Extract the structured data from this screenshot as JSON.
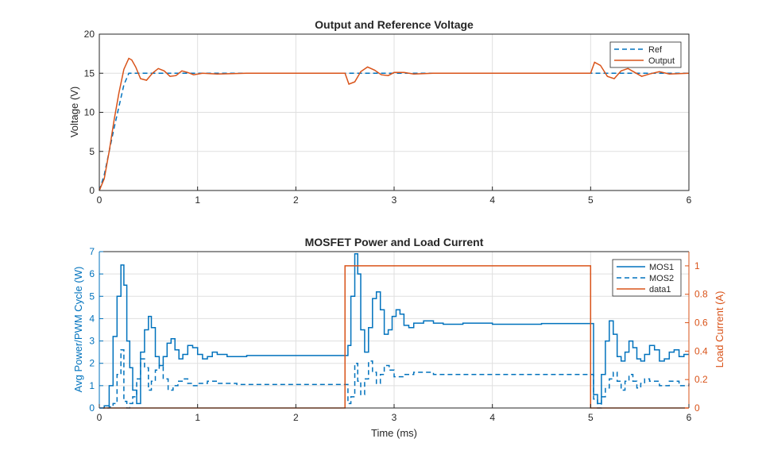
{
  "colors": {
    "blue": "#0072BD",
    "orange": "#D95319",
    "axis": "#262626",
    "grid": "#dfdfdf"
  },
  "chart_data": [
    {
      "type": "line",
      "title": "Output and Reference Voltage",
      "xlabel": "",
      "ylabel": "Voltage (V)",
      "xlim": [
        0,
        6
      ],
      "ylim": [
        0,
        20
      ],
      "xticks": [
        0,
        1,
        2,
        3,
        4,
        5,
        6
      ],
      "yticks": [
        0,
        5,
        10,
        15,
        20
      ],
      "grid": true,
      "legend_position": "top-right",
      "series": [
        {
          "name": "Ref",
          "style": "dashed",
          "color": "#0072BD",
          "x": [
            0,
            0.05,
            0.15,
            0.25,
            0.3,
            6
          ],
          "y": [
            0,
            2,
            8,
            13.5,
            15,
            15
          ]
        },
        {
          "name": "Output",
          "style": "solid",
          "color": "#D95319",
          "x": [
            0,
            0.05,
            0.1,
            0.15,
            0.2,
            0.25,
            0.3,
            0.33,
            0.37,
            0.42,
            0.48,
            0.54,
            0.6,
            0.66,
            0.72,
            0.78,
            0.84,
            0.9,
            0.96,
            1.05,
            1.2,
            1.5,
            2.0,
            2.5,
            2.54,
            2.6,
            2.66,
            2.73,
            2.8,
            2.87,
            2.94,
            3.0,
            3.1,
            3.2,
            3.4,
            4.0,
            4.5,
            5.0,
            5.04,
            5.1,
            5.17,
            5.24,
            5.31,
            5.38,
            5.45,
            5.52,
            5.6,
            5.7,
            5.8,
            6.0
          ],
          "y": [
            0,
            1.5,
            5,
            9,
            12.5,
            15.5,
            16.9,
            16.7,
            15.8,
            14.3,
            14.1,
            15.0,
            15.6,
            15.3,
            14.6,
            14.7,
            15.3,
            15.1,
            14.8,
            15.0,
            14.9,
            15.0,
            15.0,
            15.0,
            13.6,
            13.9,
            15.2,
            15.8,
            15.4,
            14.8,
            14.7,
            15.1,
            15.1,
            14.9,
            15.0,
            15.0,
            15.0,
            15.0,
            16.4,
            16.0,
            14.6,
            14.3,
            15.3,
            15.6,
            15.1,
            14.6,
            14.9,
            15.2,
            14.9,
            15.0
          ]
        }
      ]
    },
    {
      "type": "line",
      "title": "MOSFET Power and Load Current",
      "xlabel": "Time (ms)",
      "ylabel_left": "Avg Power/PWM Cycle (W)",
      "ylabel_right": "Load Current (A)",
      "xlim": [
        0,
        6
      ],
      "ylim_left": [
        0,
        7
      ],
      "ylim_right": [
        0,
        1.1
      ],
      "xticks": [
        0,
        1,
        2,
        3,
        4,
        5,
        6
      ],
      "yticks_left": [
        0,
        1,
        2,
        3,
        4,
        5,
        6,
        7
      ],
      "yticks_right": [
        0,
        0.2,
        0.4,
        0.6,
        0.8,
        1
      ],
      "grid": true,
      "legend_position": "top-right",
      "series": [
        {
          "name": "MOS1",
          "style": "solid-step",
          "axis": "left",
          "color": "#0072BD",
          "x": [
            0,
            0.05,
            0.1,
            0.14,
            0.18,
            0.22,
            0.25,
            0.28,
            0.31,
            0.34,
            0.38,
            0.42,
            0.46,
            0.5,
            0.53,
            0.57,
            0.61,
            0.65,
            0.69,
            0.73,
            0.77,
            0.81,
            0.85,
            0.9,
            0.95,
            1.0,
            1.05,
            1.1,
            1.15,
            1.2,
            1.3,
            1.5,
            2.0,
            2.5,
            2.53,
            2.56,
            2.6,
            2.63,
            2.66,
            2.7,
            2.74,
            2.78,
            2.82,
            2.86,
            2.9,
            2.94,
            2.98,
            3.02,
            3.06,
            3.1,
            3.15,
            3.2,
            3.3,
            3.4,
            3.5,
            3.7,
            4.0,
            4.5,
            5.0,
            5.03,
            5.07,
            5.11,
            5.15,
            5.19,
            5.23,
            5.27,
            5.31,
            5.35,
            5.39,
            5.43,
            5.47,
            5.51,
            5.55,
            5.6,
            5.65,
            5.7,
            5.75,
            5.8,
            5.85,
            5.9,
            5.95,
            6.0
          ],
          "y": [
            0,
            0.1,
            1.0,
            3.2,
            5.0,
            6.4,
            5.5,
            3.0,
            1.8,
            0.8,
            0.2,
            2.5,
            3.5,
            4.1,
            3.6,
            2.3,
            1.9,
            2.3,
            2.9,
            3.1,
            2.6,
            2.2,
            2.4,
            2.8,
            2.7,
            2.4,
            2.2,
            2.3,
            2.5,
            2.4,
            2.3,
            2.35,
            2.35,
            2.35,
            2.8,
            5.0,
            6.9,
            6.0,
            3.5,
            2.5,
            3.6,
            4.9,
            5.2,
            4.4,
            3.3,
            3.5,
            4.1,
            4.4,
            4.2,
            3.7,
            3.6,
            3.8,
            3.9,
            3.8,
            3.75,
            3.8,
            3.75,
            3.78,
            3.78,
            0.6,
            0.2,
            1.5,
            3.0,
            3.9,
            3.3,
            2.3,
            2.1,
            2.5,
            3.0,
            2.7,
            2.2,
            2.1,
            2.4,
            2.8,
            2.6,
            2.1,
            2.2,
            2.5,
            2.6,
            2.3,
            2.4,
            2.4
          ]
        },
        {
          "name": "MOS2",
          "style": "dashed-step",
          "axis": "left",
          "color": "#0072BD",
          "x": [
            0,
            0.1,
            0.14,
            0.18,
            0.22,
            0.25,
            0.28,
            0.31,
            0.34,
            0.38,
            0.42,
            0.46,
            0.5,
            0.53,
            0.57,
            0.61,
            0.65,
            0.7,
            0.75,
            0.8,
            0.85,
            0.9,
            0.95,
            1.0,
            1.1,
            1.2,
            1.4,
            2.0,
            2.5,
            2.53,
            2.56,
            2.6,
            2.63,
            2.66,
            2.7,
            2.74,
            2.78,
            2.82,
            2.86,
            2.9,
            2.95,
            3.0,
            3.1,
            3.2,
            3.4,
            4.0,
            5.0,
            5.03,
            5.07,
            5.11,
            5.15,
            5.19,
            5.23,
            5.27,
            5.31,
            5.35,
            5.39,
            5.43,
            5.47,
            5.51,
            5.55,
            5.6,
            5.7,
            5.8,
            5.9,
            6.0
          ],
          "y": [
            0,
            0.05,
            0.2,
            1.5,
            2.6,
            0.3,
            0.0,
            0.2,
            0.5,
            1.3,
            2.2,
            1.8,
            0.8,
            1.2,
            1.7,
            1.9,
            1.3,
            0.8,
            1.0,
            1.2,
            1.3,
            1.1,
            1.0,
            1.1,
            1.2,
            1.1,
            1.05,
            1.05,
            1.05,
            0.2,
            0.5,
            2.0,
            1.2,
            0.6,
            1.3,
            2.1,
            1.6,
            1.1,
            1.5,
            1.9,
            1.7,
            1.4,
            1.5,
            1.6,
            1.5,
            1.5,
            1.5,
            0.4,
            0.0,
            0.5,
            0.9,
            1.3,
            1.6,
            1.2,
            0.8,
            1.2,
            1.5,
            1.2,
            0.9,
            1.1,
            1.3,
            1.2,
            1.0,
            1.2,
            1.0,
            1.1
          ]
        },
        {
          "name": "data1",
          "style": "solid",
          "axis": "right",
          "color": "#D95319",
          "x": [
            0,
            2.5,
            2.5,
            5.0,
            5.0,
            6.0
          ],
          "y": [
            0,
            0,
            1,
            1,
            0,
            0
          ]
        }
      ]
    }
  ]
}
